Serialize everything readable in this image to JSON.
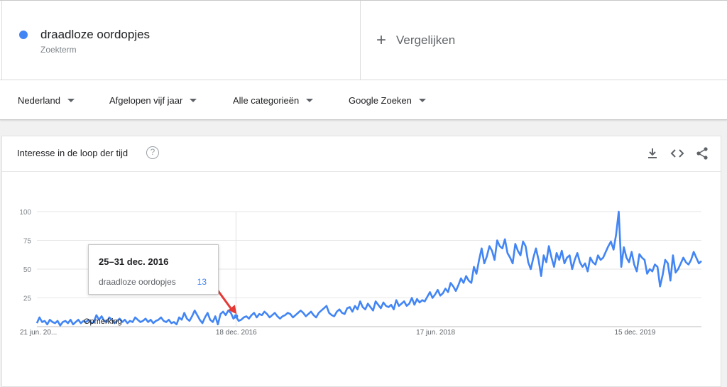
{
  "term": {
    "name": "draadloze oordopjes",
    "type": "Zoekterm",
    "color": "#4285f4"
  },
  "compare": {
    "label": "Vergelijken",
    "icon": "plus-icon"
  },
  "filters": [
    {
      "label": "Nederland"
    },
    {
      "label": "Afgelopen vijf jaar"
    },
    {
      "label": "Alle categorieën"
    },
    {
      "label": "Google Zoeken"
    }
  ],
  "card": {
    "title": "Interesse in de loop der tijd",
    "help_icon": "help-circle-icon",
    "tools": [
      "download-icon",
      "embed-code-icon",
      "share-icon"
    ]
  },
  "tooltip": {
    "date": "25–31 dec. 2016",
    "term": "draadloze oordopjes",
    "value": "13"
  },
  "annotation": {
    "label": "Opmerking"
  },
  "chart_data": {
    "type": "line",
    "title": "",
    "xlabel": "",
    "ylabel": "",
    "ylim": [
      0,
      100
    ],
    "y_ticks": [
      "25",
      "50",
      "75",
      "100"
    ],
    "x_tick_labels": [
      "21 jun. 20...",
      "18 dec. 2016",
      "17 jun. 2018",
      "15 dec. 2019"
    ],
    "grid": true,
    "line_color": "#4285f4",
    "series": [
      {
        "values": [
          3,
          8,
          4,
          5,
          2,
          6,
          4,
          3,
          5,
          1,
          4,
          5,
          3,
          6,
          2,
          4,
          6,
          3,
          5,
          4,
          6,
          3,
          4,
          10,
          6,
          9,
          5,
          4,
          8,
          6,
          3,
          5,
          7,
          4,
          6,
          3,
          5,
          4,
          8,
          6,
          4,
          5,
          7,
          4,
          6,
          3,
          5,
          6,
          8,
          5,
          4,
          6,
          3,
          4,
          2,
          8,
          6,
          12,
          7,
          5,
          9,
          14,
          10,
          6,
          3,
          8,
          12,
          6,
          4,
          9,
          2,
          11,
          13,
          10,
          14,
          12,
          7,
          9,
          5,
          6,
          8,
          9,
          7,
          10,
          12,
          8,
          11,
          10,
          13,
          11,
          8,
          10,
          12,
          9,
          7,
          9,
          10,
          12,
          11,
          8,
          10,
          12,
          14,
          12,
          9,
          11,
          13,
          10,
          8,
          12,
          14,
          16,
          18,
          12,
          10,
          9,
          13,
          15,
          12,
          11,
          16,
          17,
          13,
          18,
          15,
          22,
          17,
          15,
          20,
          17,
          14,
          22,
          19,
          16,
          21,
          18,
          17,
          19,
          15,
          23,
          18,
          20,
          22,
          18,
          20,
          25,
          19,
          24,
          21,
          23,
          22,
          26,
          30,
          25,
          28,
          32,
          27,
          29,
          33,
          30,
          38,
          35,
          31,
          36,
          42,
          38,
          44,
          40,
          38,
          52,
          46,
          58,
          68,
          55,
          61,
          70,
          66,
          58,
          75,
          70,
          68,
          76,
          64,
          60,
          55,
          72,
          66,
          62,
          74,
          70,
          56,
          50,
          60,
          68,
          58,
          44,
          62,
          56,
          70,
          60,
          52,
          64,
          58,
          66,
          55,
          60,
          62,
          50,
          58,
          64,
          56,
          52,
          55,
          48,
          60,
          56,
          54,
          62,
          58,
          60,
          65,
          70,
          74,
          67,
          80,
          100,
          52,
          69,
          60,
          56,
          65,
          54,
          48,
          63,
          60,
          58,
          46,
          50,
          48,
          54,
          52,
          35,
          45,
          58,
          55,
          40,
          62,
          47,
          50,
          55,
          60,
          56,
          54,
          58,
          65,
          60,
          55,
          57
        ]
      }
    ]
  }
}
